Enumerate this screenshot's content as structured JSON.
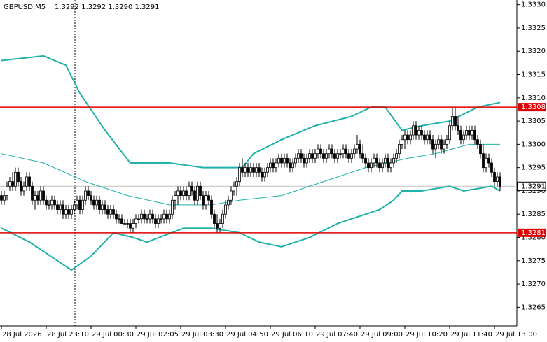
{
  "chart_data": {
    "type": "candlestick",
    "title": "GBPUSD,M5",
    "info": "1.3292 1.3292 1.3290 1.3291",
    "xlim": [
      -0.5,
      184
    ],
    "ylim": [
      1.3261,
      1.3331
    ],
    "yticks": [
      {
        "value": 1.333,
        "label": "1.3330"
      },
      1.3325,
      {
        "value": 1.332,
        "label": "1.3320"
      },
      1.3315,
      {
        "value": 1.331,
        "label": "1.3310"
      },
      1.3305,
      {
        "value": 1.33,
        "label": "1.3300"
      },
      1.3295,
      {
        "value": 1.329,
        "label": "1.3290"
      },
      1.3285,
      {
        "value": 1.328,
        "label": "1.3280"
      },
      1.3275,
      {
        "value": 1.327,
        "label": "1.3270"
      },
      1.3265
    ],
    "xticks": [
      {
        "value": 0,
        "label": "28 Jul 2026"
      },
      {
        "value": 16,
        "label": "28 Jul 23:10"
      },
      {
        "value": 32,
        "label": "29 Jul 00:30"
      },
      {
        "value": 48,
        "label": "29 Jul 02:05"
      },
      {
        "value": 64,
        "label": "29 Jul 03:30"
      },
      {
        "value": 80,
        "label": "29 Jul 04:50"
      },
      {
        "value": 96,
        "label": "29 Jul 06:10"
      },
      {
        "value": 112,
        "label": "29 Jul 07:40"
      },
      {
        "value": 128,
        "label": "29 Jul 09:00"
      },
      {
        "value": 144,
        "label": "29 Jul 10:20"
      },
      {
        "value": 160,
        "label": "29 Jul 11:40"
      },
      {
        "value": 176,
        "label": "29 Jul 13:00"
      }
    ],
    "hlines": [
      {
        "value": 1.3308,
        "color": "#e00000"
      },
      {
        "value": 1.3281,
        "color": "#e00000"
      }
    ],
    "price_marker": 1.3291,
    "candle_color": "#000000",
    "candles": [
      [
        1.3289,
        1.329,
        1.3287,
        1.3288
      ],
      [
        1.3288,
        1.329,
        1.3287,
        1.3289
      ],
      [
        1.3289,
        1.3292,
        1.3288,
        1.3291
      ],
      [
        1.3291,
        1.3293,
        1.329,
        1.3292
      ],
      [
        1.3292,
        1.3294,
        1.329,
        1.3291
      ],
      [
        1.3291,
        1.3295,
        1.329,
        1.3294
      ],
      [
        1.3294,
        1.3295,
        1.3291,
        1.3292
      ],
      [
        1.3292,
        1.3293,
        1.3289,
        1.329
      ],
      [
        1.329,
        1.3292,
        1.3289,
        1.3291
      ],
      [
        1.3291,
        1.3294,
        1.329,
        1.3293
      ],
      [
        1.3293,
        1.3294,
        1.329,
        1.3291
      ],
      [
        1.3291,
        1.3292,
        1.3287,
        1.3288
      ],
      [
        1.3288,
        1.329,
        1.3286,
        1.3289
      ],
      [
        1.3289,
        1.329,
        1.3287,
        1.3288
      ],
      [
        1.3288,
        1.3291,
        1.3287,
        1.329
      ],
      [
        1.329,
        1.3291,
        1.3287,
        1.3288
      ],
      [
        1.3288,
        1.3289,
        1.3286,
        1.3287
      ],
      [
        1.3287,
        1.3288,
        1.3286,
        1.3287
      ],
      [
        1.3287,
        1.3289,
        1.3286,
        1.3288
      ],
      [
        1.3288,
        1.3289,
        1.3286,
        1.3287
      ],
      [
        1.3287,
        1.3288,
        1.3285,
        1.3286
      ],
      [
        1.3286,
        1.3288,
        1.3285,
        1.3287
      ],
      [
        1.3287,
        1.3288,
        1.3284,
        1.3285
      ],
      [
        1.3285,
        1.3287,
        1.3284,
        1.3286
      ],
      [
        1.3286,
        1.3287,
        1.3284,
        1.3285
      ],
      [
        1.3285,
        1.3287,
        1.3284,
        1.3286
      ],
      [
        1.3286,
        1.3288,
        1.3285,
        1.3287
      ],
      [
        1.3287,
        1.3289,
        1.3286,
        1.3288
      ],
      [
        1.3288,
        1.3289,
        1.3285,
        1.3286
      ],
      [
        1.3286,
        1.3289,
        1.3285,
        1.3288
      ],
      [
        1.3288,
        1.3291,
        1.3287,
        1.329
      ],
      [
        1.329,
        1.3291,
        1.3288,
        1.3289
      ],
      [
        1.3289,
        1.329,
        1.3287,
        1.3288
      ],
      [
        1.3288,
        1.3289,
        1.3286,
        1.3287
      ],
      [
        1.3287,
        1.3289,
        1.3286,
        1.3288
      ],
      [
        1.3288,
        1.3289,
        1.3285,
        1.3286
      ],
      [
        1.3286,
        1.3288,
        1.3285,
        1.3287
      ],
      [
        1.3287,
        1.3288,
        1.3285,
        1.3286
      ],
      [
        1.3286,
        1.3287,
        1.3284,
        1.3285
      ],
      [
        1.3285,
        1.3287,
        1.3284,
        1.3286
      ],
      [
        1.3286,
        1.3287,
        1.3284,
        1.3285
      ],
      [
        1.3285,
        1.3286,
        1.3283,
        1.3284
      ],
      [
        1.3284,
        1.3285,
        1.3283,
        1.3284
      ],
      [
        1.3284,
        1.3285,
        1.3283,
        1.3283
      ],
      [
        1.3283,
        1.3284,
        1.3283,
        1.3283
      ],
      [
        1.3283,
        1.3284,
        1.3282,
        1.3283
      ],
      [
        1.3283,
        1.3284,
        1.3281,
        1.3282
      ],
      [
        1.3282,
        1.3284,
        1.3281,
        1.3283
      ],
      [
        1.3283,
        1.3285,
        1.3282,
        1.3284
      ],
      [
        1.3284,
        1.3285,
        1.3283,
        1.3284
      ],
      [
        1.3284,
        1.3286,
        1.3283,
        1.3285
      ],
      [
        1.3285,
        1.3286,
        1.3283,
        1.3284
      ],
      [
        1.3284,
        1.3285,
        1.3283,
        1.3284
      ],
      [
        1.3284,
        1.3286,
        1.3283,
        1.3285
      ],
      [
        1.3285,
        1.3286,
        1.3283,
        1.3284
      ],
      [
        1.3284,
        1.3285,
        1.3282,
        1.3283
      ],
      [
        1.3283,
        1.3285,
        1.3282,
        1.3284
      ],
      [
        1.3284,
        1.3285,
        1.3283,
        1.3284
      ],
      [
        1.3284,
        1.3286,
        1.3283,
        1.3285
      ],
      [
        1.3285,
        1.3286,
        1.3283,
        1.3284
      ],
      [
        1.3284,
        1.3286,
        1.3283,
        1.3285
      ],
      [
        1.3285,
        1.3289,
        1.3284,
        1.3288
      ],
      [
        1.3288,
        1.329,
        1.3286,
        1.3289
      ],
      [
        1.3289,
        1.3291,
        1.3287,
        1.329
      ],
      [
        1.329,
        1.3291,
        1.3288,
        1.3289
      ],
      [
        1.3289,
        1.3291,
        1.3288,
        1.329
      ],
      [
        1.329,
        1.3291,
        1.3288,
        1.3289
      ],
      [
        1.3289,
        1.3292,
        1.3288,
        1.3291
      ],
      [
        1.3291,
        1.3292,
        1.3289,
        1.329
      ],
      [
        1.329,
        1.3291,
        1.3287,
        1.3288
      ],
      [
        1.3288,
        1.3292,
        1.3287,
        1.3291
      ],
      [
        1.3291,
        1.3292,
        1.3288,
        1.3289
      ],
      [
        1.3289,
        1.329,
        1.3286,
        1.3287
      ],
      [
        1.3287,
        1.329,
        1.3286,
        1.3289
      ],
      [
        1.3289,
        1.329,
        1.3287,
        1.3288
      ],
      [
        1.3288,
        1.3289,
        1.3284,
        1.3285
      ],
      [
        1.3285,
        1.3286,
        1.3282,
        1.3283
      ],
      [
        1.3283,
        1.3285,
        1.3281,
        1.3282
      ],
      [
        1.3282,
        1.3284,
        1.3281,
        1.3283
      ],
      [
        1.3283,
        1.3286,
        1.3282,
        1.3285
      ],
      [
        1.3285,
        1.3288,
        1.3284,
        1.3287
      ],
      [
        1.3287,
        1.3289,
        1.3286,
        1.3288
      ],
      [
        1.3288,
        1.3291,
        1.3287,
        1.329
      ],
      [
        1.329,
        1.3292,
        1.3289,
        1.3291
      ],
      [
        1.3291,
        1.3293,
        1.3289,
        1.3292
      ],
      [
        1.3292,
        1.3296,
        1.3291,
        1.3295
      ],
      [
        1.3295,
        1.3297,
        1.3293,
        1.3294
      ],
      [
        1.3294,
        1.3296,
        1.3293,
        1.3295
      ],
      [
        1.3295,
        1.3296,
        1.3293,
        1.3294
      ],
      [
        1.3294,
        1.3296,
        1.3293,
        1.3295
      ],
      [
        1.3295,
        1.3296,
        1.3293,
        1.3294
      ],
      [
        1.3294,
        1.3296,
        1.3293,
        1.3295
      ],
      [
        1.3295,
        1.3296,
        1.3293,
        1.3294
      ],
      [
        1.3294,
        1.3295,
        1.3292,
        1.3293
      ],
      [
        1.3293,
        1.3295,
        1.3292,
        1.3294
      ],
      [
        1.3294,
        1.3296,
        1.3293,
        1.3295
      ],
      [
        1.3295,
        1.3297,
        1.3294,
        1.3296
      ],
      [
        1.3296,
        1.3297,
        1.3294,
        1.3295
      ],
      [
        1.3295,
        1.3297,
        1.3294,
        1.3296
      ],
      [
        1.3296,
        1.3298,
        1.3295,
        1.3297
      ],
      [
        1.3297,
        1.3298,
        1.3295,
        1.3296
      ],
      [
        1.3296,
        1.3298,
        1.3295,
        1.3297
      ],
      [
        1.3297,
        1.3298,
        1.3295,
        1.3296
      ],
      [
        1.3296,
        1.3297,
        1.3294,
        1.3295
      ],
      [
        1.3295,
        1.3297,
        1.3294,
        1.3296
      ],
      [
        1.3296,
        1.3298,
        1.3295,
        1.3297
      ],
      [
        1.3297,
        1.3299,
        1.3296,
        1.3298
      ],
      [
        1.3298,
        1.3299,
        1.3296,
        1.3297
      ],
      [
        1.3297,
        1.3298,
        1.3295,
        1.3296
      ],
      [
        1.3296,
        1.3298,
        1.3295,
        1.3297
      ],
      [
        1.3297,
        1.3299,
        1.3296,
        1.3298
      ],
      [
        1.3298,
        1.3299,
        1.3296,
        1.3297
      ],
      [
        1.3297,
        1.3299,
        1.3296,
        1.3298
      ],
      [
        1.3298,
        1.33,
        1.3297,
        1.3299
      ],
      [
        1.3299,
        1.33,
        1.3297,
        1.3298
      ],
      [
        1.3298,
        1.3299,
        1.3296,
        1.3297
      ],
      [
        1.3297,
        1.3299,
        1.3296,
        1.3298
      ],
      [
        1.3298,
        1.33,
        1.3297,
        1.3299
      ],
      [
        1.3299,
        1.33,
        1.3297,
        1.3298
      ],
      [
        1.3298,
        1.3299,
        1.3296,
        1.3297
      ],
      [
        1.3297,
        1.3299,
        1.3296,
        1.3298
      ],
      [
        1.3298,
        1.3299,
        1.3297,
        1.3298
      ],
      [
        1.3298,
        1.33,
        1.3297,
        1.3299
      ],
      [
        1.3299,
        1.33,
        1.3297,
        1.3298
      ],
      [
        1.3298,
        1.3299,
        1.3296,
        1.3297
      ],
      [
        1.3297,
        1.3299,
        1.3296,
        1.3298
      ],
      [
        1.3298,
        1.33,
        1.3297,
        1.3299
      ],
      [
        1.3299,
        1.3302,
        1.3298,
        1.33
      ],
      [
        1.33,
        1.3301,
        1.3297,
        1.3298
      ],
      [
        1.3298,
        1.33,
        1.3296,
        1.3297
      ],
      [
        1.3297,
        1.3298,
        1.3295,
        1.3296
      ],
      [
        1.3296,
        1.3297,
        1.3294,
        1.3295
      ],
      [
        1.3295,
        1.3297,
        1.3294,
        1.3296
      ],
      [
        1.3296,
        1.3298,
        1.3295,
        1.3297
      ],
      [
        1.3297,
        1.3298,
        1.3295,
        1.3296
      ],
      [
        1.3296,
        1.3297,
        1.3294,
        1.3295
      ],
      [
        1.3295,
        1.3297,
        1.3294,
        1.3296
      ],
      [
        1.3296,
        1.3298,
        1.3295,
        1.3297
      ],
      [
        1.3297,
        1.3298,
        1.3294,
        1.3295
      ],
      [
        1.3295,
        1.3297,
        1.3294,
        1.3296
      ],
      [
        1.3296,
        1.3298,
        1.3295,
        1.3297
      ],
      [
        1.3297,
        1.3299,
        1.3296,
        1.3298
      ],
      [
        1.3298,
        1.3301,
        1.3297,
        1.33
      ],
      [
        1.33,
        1.3302,
        1.3299,
        1.3301
      ],
      [
        1.3301,
        1.3303,
        1.3299,
        1.3302
      ],
      [
        1.3302,
        1.3303,
        1.33,
        1.3301
      ],
      [
        1.3301,
        1.3303,
        1.33,
        1.3302
      ],
      [
        1.3302,
        1.3305,
        1.3301,
        1.3304
      ],
      [
        1.3304,
        1.3305,
        1.3301,
        1.3302
      ],
      [
        1.3302,
        1.3304,
        1.3301,
        1.3303
      ],
      [
        1.3303,
        1.3304,
        1.3301,
        1.3302
      ],
      [
        1.3302,
        1.3303,
        1.33,
        1.3301
      ],
      [
        1.3301,
        1.3303,
        1.33,
        1.3302
      ],
      [
        1.3302,
        1.3303,
        1.33,
        1.3301
      ],
      [
        1.3301,
        1.3302,
        1.3298,
        1.3299
      ],
      [
        1.3299,
        1.3301,
        1.3297,
        1.33
      ],
      [
        1.33,
        1.3302,
        1.3299,
        1.3301
      ],
      [
        1.3301,
        1.3302,
        1.3298,
        1.3299
      ],
      [
        1.3299,
        1.3301,
        1.3298,
        1.33
      ],
      [
        1.33,
        1.3302,
        1.3299,
        1.3301
      ],
      [
        1.3301,
        1.3305,
        1.33,
        1.3304
      ],
      [
        1.3304,
        1.3308,
        1.3303,
        1.3306
      ],
      [
        1.3306,
        1.3308,
        1.3303,
        1.3304
      ],
      [
        1.3304,
        1.3306,
        1.3302,
        1.3303
      ],
      [
        1.3303,
        1.3304,
        1.33,
        1.3301
      ],
      [
        1.3301,
        1.3303,
        1.33,
        1.3302
      ],
      [
        1.3302,
        1.3304,
        1.3301,
        1.3303
      ],
      [
        1.3303,
        1.3304,
        1.3301,
        1.3302
      ],
      [
        1.3302,
        1.3304,
        1.3301,
        1.3303
      ],
      [
        1.3303,
        1.3304,
        1.33,
        1.3301
      ],
      [
        1.3301,
        1.3302,
        1.3299,
        1.33
      ],
      [
        1.33,
        1.3301,
        1.3297,
        1.3298
      ],
      [
        1.3298,
        1.33,
        1.3294,
        1.3295
      ],
      [
        1.3295,
        1.3298,
        1.3294,
        1.3297
      ],
      [
        1.3297,
        1.3298,
        1.3295,
        1.3296
      ],
      [
        1.3296,
        1.3297,
        1.3293,
        1.3294
      ],
      [
        1.3294,
        1.3295,
        1.3291,
        1.3292
      ],
      [
        1.3292,
        1.3294,
        1.3291,
        1.3293
      ],
      [
        1.3293,
        1.3294,
        1.329,
        1.3291
      ]
    ],
    "bands": [
      {
        "color": "#20b2aa",
        "width": 2,
        "x": [
          0,
          15,
          23,
          28,
          37,
          46,
          60,
          72,
          86,
          90,
          100,
          112,
          125,
          132,
          137,
          143,
          150,
          160,
          170,
          178
        ],
        "values": [
          1.3318,
          1.3319,
          1.3317,
          1.3311,
          1.3303,
          1.3296,
          1.3296,
          1.3295,
          1.3295,
          1.3298,
          1.3301,
          1.3304,
          1.3306,
          1.3308,
          1.3308,
          1.3303,
          1.3304,
          1.3305,
          1.3308,
          1.3309
        ]
      },
      {
        "color": "#20b2aa",
        "width": 1,
        "x": [
          0,
          15,
          30,
          45,
          60,
          75,
          85,
          100,
          115,
          130,
          145,
          155,
          167,
          178
        ],
        "values": [
          1.3298,
          1.3296,
          1.3292,
          1.3289,
          1.3287,
          1.3287,
          1.3288,
          1.3289,
          1.3292,
          1.3295,
          1.3297,
          1.3298,
          1.33,
          1.33
        ]
      },
      {
        "color": "#20b2aa",
        "width": 2,
        "x": [
          0,
          10,
          25,
          32,
          40,
          47,
          52,
          65,
          75,
          85,
          92,
          100,
          110,
          120,
          135,
          140,
          143,
          150,
          160,
          165,
          175,
          178
        ],
        "values": [
          1.3282,
          1.3279,
          1.3273,
          1.3276,
          1.3281,
          1.328,
          1.3279,
          1.3282,
          1.3282,
          1.3281,
          1.3279,
          1.3278,
          1.328,
          1.3283,
          1.3286,
          1.3288,
          1.329,
          1.329,
          1.3291,
          1.329,
          1.3291,
          1.329
        ]
      }
    ]
  }
}
